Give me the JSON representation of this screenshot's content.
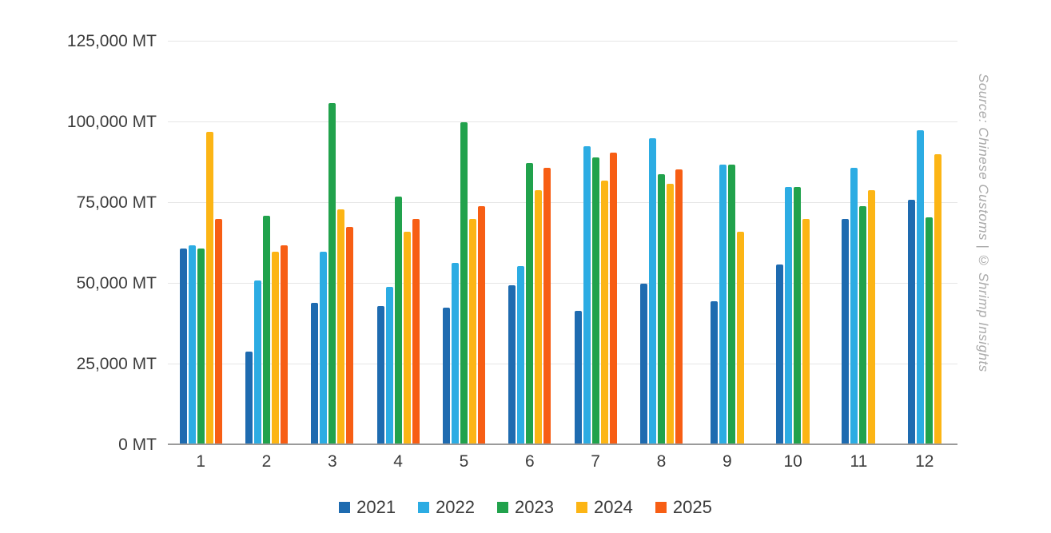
{
  "source_note": "Source: Chinese Customs | © Shrimp Insights",
  "colors": {
    "grid": "#e6e6e6",
    "axis_line": "#9b9b9b",
    "tick_text": "#3c3c3c",
    "source_text": "#aaaaaa"
  },
  "chart_data": {
    "type": "bar",
    "title": "",
    "xlabel": "",
    "ylabel": "MT",
    "unit": "MT",
    "grid": true,
    "legend_position": "bottom",
    "ylim": [
      0,
      125000
    ],
    "y_ticks": [
      {
        "value": 0,
        "label": "0 MT"
      },
      {
        "value": 25000,
        "label": "25,000 MT"
      },
      {
        "value": 50000,
        "label": "50,000 MT"
      },
      {
        "value": 75000,
        "label": "75,000 MT"
      },
      {
        "value": 100000,
        "label": "100,000 MT"
      },
      {
        "value": 125000,
        "label": "125,000 MT"
      }
    ],
    "categories": [
      "1",
      "2",
      "3",
      "4",
      "5",
      "6",
      "7",
      "8",
      "9",
      "10",
      "11",
      "12"
    ],
    "series": [
      {
        "name": "2021",
        "color": "#1E6BB0",
        "values": [
          61000,
          29000,
          44000,
          43000,
          42500,
          49500,
          41500,
          50000,
          44500,
          56000,
          70000,
          76000
        ]
      },
      {
        "name": "2022",
        "color": "#2CACE3",
        "values": [
          62000,
          51000,
          60000,
          49000,
          56500,
          55500,
          92500,
          95000,
          87000,
          80000,
          86000,
          97500
        ]
      },
      {
        "name": "2023",
        "color": "#21A24C",
        "values": [
          61000,
          71000,
          106000,
          77000,
          100000,
          87500,
          89000,
          84000,
          87000,
          80000,
          74000,
          70500
        ]
      },
      {
        "name": "2024",
        "color": "#FCB515",
        "values": [
          97000,
          60000,
          73000,
          66000,
          70000,
          79000,
          82000,
          81000,
          66000,
          70000,
          79000,
          90000
        ]
      },
      {
        "name": "2025",
        "color": "#F75E14",
        "values": [
          70000,
          62000,
          67500,
          70000,
          74000,
          86000,
          90500,
          85500,
          null,
          null,
          null,
          null
        ]
      }
    ]
  }
}
